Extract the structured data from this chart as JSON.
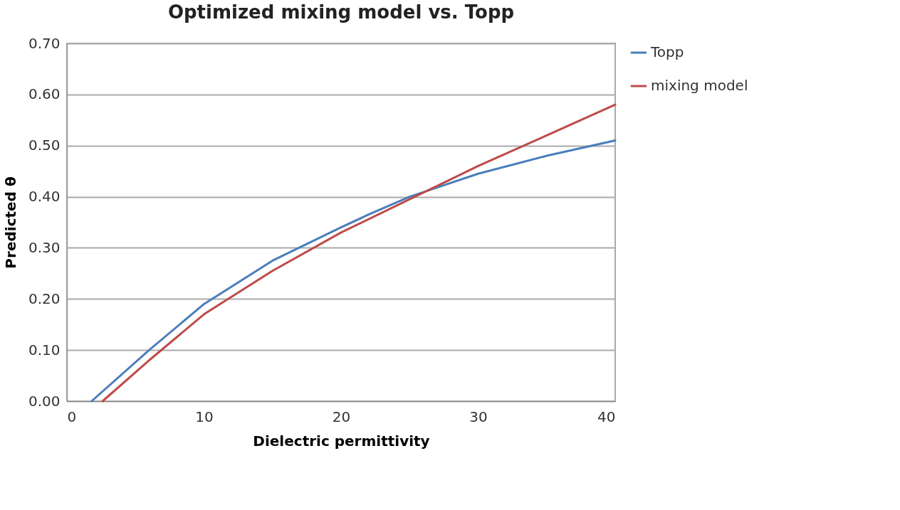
{
  "chart_data": {
    "type": "line",
    "title": "Optimized mixing model vs. Topp",
    "xlabel": "Dielectric permittivity",
    "ylabel": "Predicted θ",
    "series": [
      {
        "name": "Topp",
        "color": "#4a7ebb",
        "x": [
          1.8,
          6,
          10,
          15,
          20,
          22,
          25,
          30,
          35,
          40
        ],
        "values": [
          0,
          0.1,
          0.19,
          0.275,
          0.34,
          0.365,
          0.4,
          0.445,
          0.48,
          0.51
        ]
      },
      {
        "name": "mixing model",
        "color": "#be4b48",
        "x": [
          2.6,
          6,
          10,
          15,
          20,
          25,
          30,
          35,
          40
        ],
        "values": [
          0,
          0.08,
          0.17,
          0.255,
          0.33,
          0.395,
          0.46,
          0.52,
          0.58
        ]
      }
    ],
    "xlim": [
      0,
      40
    ],
    "xticks": [
      0,
      10,
      20,
      30,
      40
    ],
    "ylim": [
      0,
      0.7
    ],
    "yticks": [
      {
        "value": 0,
        "label": "0.00"
      },
      {
        "value": 0.1,
        "label": "0.10"
      },
      {
        "value": 0.2,
        "label": "0.20"
      },
      {
        "value": 0.3,
        "label": "0.30"
      },
      {
        "value": 0.4,
        "label": "0.40"
      },
      {
        "value": 0.5,
        "label": "0.50"
      },
      {
        "value": 0.6,
        "label": "0.60"
      },
      {
        "value": 0.7,
        "label": "0.70"
      }
    ],
    "grid": "y",
    "legend": "right",
    "marker": "none",
    "line_style": "solid"
  }
}
